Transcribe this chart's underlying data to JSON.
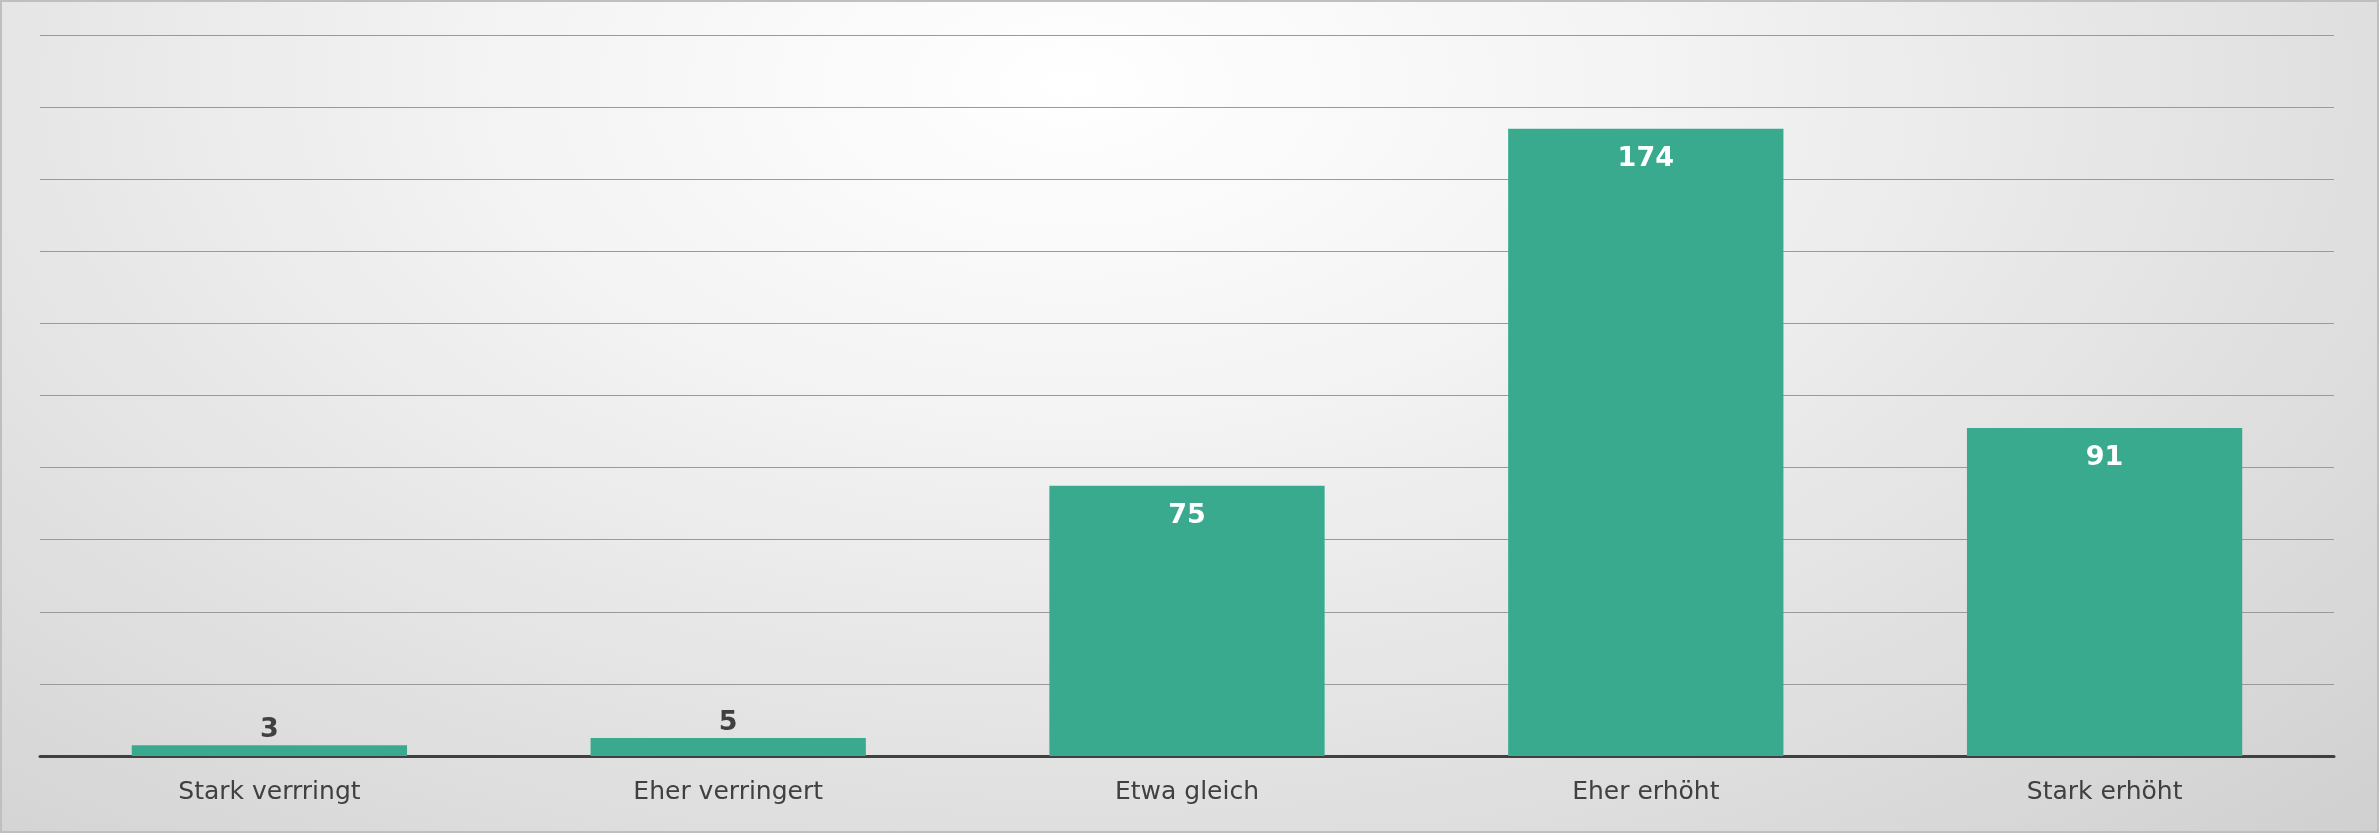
{
  "chart_data": {
    "type": "bar",
    "categories": [
      "Stark verrringt",
      "Eher verringert",
      "Etwa gleich",
      "Eher erhöht",
      "Stark erhöht"
    ],
    "values": [
      3,
      5,
      75,
      174,
      91
    ],
    "color": "#3aaa8f",
    "data_labels": true,
    "ylim": [
      0,
      200
    ],
    "yticks": [
      {
        "value": 0,
        "label": null
      },
      {
        "value": 20,
        "label": null
      },
      {
        "value": 40,
        "label": null
      },
      {
        "value": 60,
        "label": null
      },
      {
        "value": 80,
        "label": null
      },
      {
        "value": 100,
        "label": null
      },
      {
        "value": 120,
        "label": null
      },
      {
        "value": 140,
        "label": null
      },
      {
        "value": 160,
        "label": null
      },
      {
        "value": 180,
        "label": null
      },
      {
        "value": 200,
        "label": null
      }
    ],
    "grid": "y",
    "tick_labels": "x"
  }
}
